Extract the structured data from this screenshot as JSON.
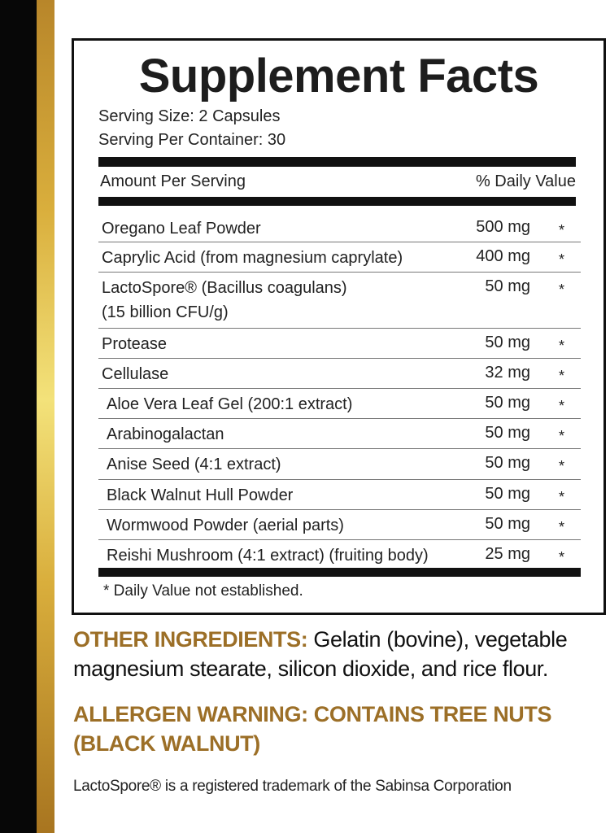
{
  "colors": {
    "gold_heading": "#9c6f27",
    "stripe_black": "#070707",
    "stripe_gold": "#d9ae3c"
  },
  "facts": {
    "title": "Supplement Facts",
    "serving_size": "Serving Size: 2 Capsules",
    "servings_per_container": "Serving Per Container: 30",
    "amount_header": "Amount Per Serving",
    "dv_header": "% Daily Value",
    "rows": [
      {
        "name": "Oregano Leaf Powder",
        "amount": "500 mg",
        "dv": "*"
      },
      {
        "name": "Caprylic Acid (from magnesium caprylate)",
        "amount": "400 mg",
        "dv": "*"
      },
      {
        "name": "LactoSpore® (Bacillus coagulans)",
        "name2": "(15 billion CFU/g)",
        "amount": "50 mg",
        "dv": "*"
      },
      {
        "name": "Protease",
        "amount": "50 mg",
        "dv": "*"
      },
      {
        "name": "Cellulase",
        "amount": "32 mg",
        "dv": "*"
      },
      {
        "name": "Aloe Vera Leaf Gel (200:1 extract)",
        "amount": "50 mg",
        "dv": "*"
      },
      {
        "name": "Arabinogalactan",
        "amount": "50 mg",
        "dv": "*"
      },
      {
        "name": "Anise Seed (4:1 extract)",
        "amount": "50 mg",
        "dv": "*"
      },
      {
        "name": "Black Walnut Hull Powder",
        "amount": "50 mg",
        "dv": "*"
      },
      {
        "name": "Wormwood Powder (aerial parts)",
        "amount": "50 mg",
        "dv": "*"
      },
      {
        "name": "Reishi Mushroom (4:1 extract) (fruiting body)",
        "amount": "25 mg",
        "dv": "*"
      }
    ],
    "footnote": "* Daily Value not established."
  },
  "other_ingredients": {
    "label": "OTHER INGREDIENTS:",
    "text": " Gelatin (bovine), vegetable magnesium stearate, silicon dioxide, and rice flour."
  },
  "allergen_warning": "ALLERGEN WARNING: CONTAINS TREE NUTS (BLACK WALNUT)",
  "trademark": "LactoSpore® is a registered trademark of the Sabinsa Corporation"
}
